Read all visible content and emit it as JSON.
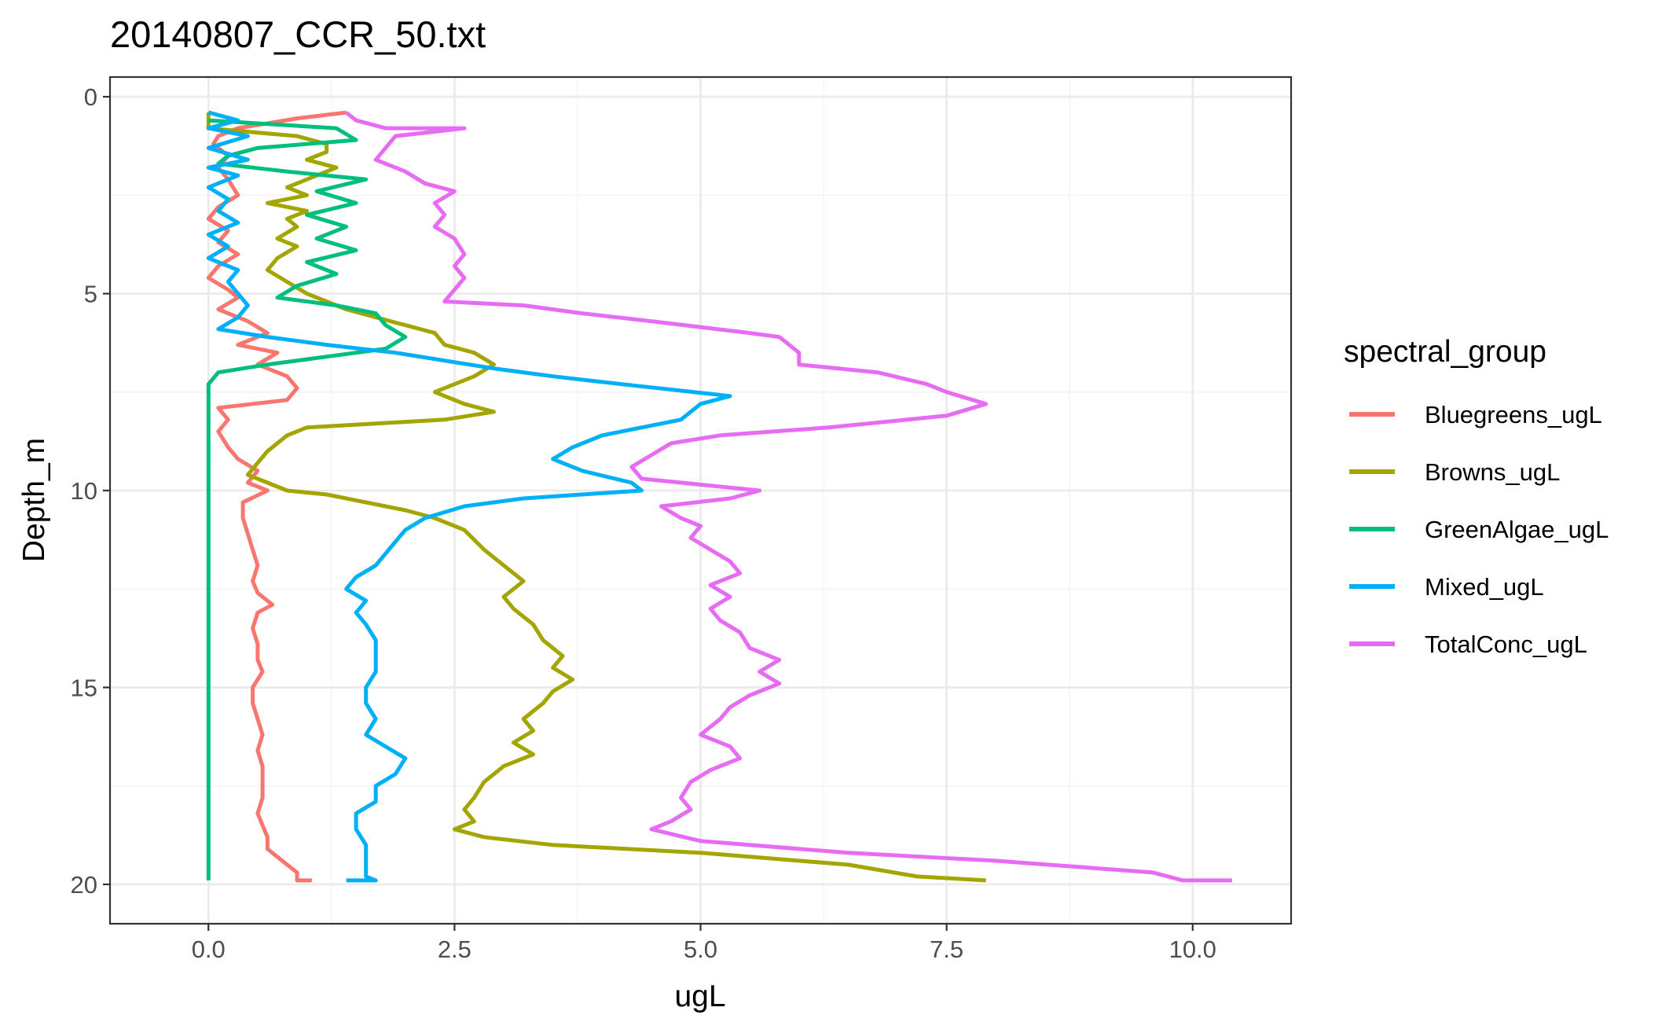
{
  "chart_data": {
    "type": "line",
    "title": "20140807_CCR_50.txt",
    "xlabel": "ugL",
    "ylabel": "Depth_m",
    "xlim": [
      -1.0,
      11.0
    ],
    "ylim": [
      21.0,
      -0.5
    ],
    "y_reversed": true,
    "xticks": [
      0,
      2.5,
      5,
      7.5,
      10
    ],
    "xtick_labels": [
      "0.0",
      "2.5",
      "5.0",
      "7.5",
      "10.0"
    ],
    "yticks": [
      0,
      5,
      10,
      15,
      20
    ],
    "ytick_labels": [
      "0",
      "5",
      "10",
      "15",
      "20"
    ],
    "grid": true,
    "legend_title": "spectral_group",
    "legend_position": "right",
    "series": [
      {
        "name": "Bluegreens_ugL",
        "color": "#F8766D",
        "points": [
          [
            1.4,
            0.4
          ],
          [
            0.9,
            0.55
          ],
          [
            0.3,
            0.8
          ],
          [
            0.1,
            1.0
          ],
          [
            0.05,
            1.2
          ],
          [
            0.2,
            1.5
          ],
          [
            0.1,
            1.8
          ],
          [
            0.2,
            2.1
          ],
          [
            0.3,
            2.5
          ],
          [
            0.1,
            2.8
          ],
          [
            0.0,
            3.1
          ],
          [
            0.2,
            3.4
          ],
          [
            0.1,
            3.7
          ],
          [
            0.3,
            4.0
          ],
          [
            0.1,
            4.3
          ],
          [
            0.0,
            4.6
          ],
          [
            0.2,
            4.9
          ],
          [
            0.3,
            5.1
          ],
          [
            0.1,
            5.4
          ],
          [
            0.4,
            5.7
          ],
          [
            0.6,
            6.0
          ],
          [
            0.3,
            6.3
          ],
          [
            0.7,
            6.5
          ],
          [
            0.5,
            6.8
          ],
          [
            0.8,
            7.1
          ],
          [
            0.9,
            7.4
          ],
          [
            0.8,
            7.7
          ],
          [
            0.1,
            7.9
          ],
          [
            0.2,
            8.2
          ],
          [
            0.1,
            8.5
          ],
          [
            0.2,
            8.9
          ],
          [
            0.3,
            9.2
          ],
          [
            0.5,
            9.5
          ],
          [
            0.4,
            9.8
          ],
          [
            0.6,
            10.0
          ],
          [
            0.35,
            10.3
          ],
          [
            0.35,
            10.7
          ],
          [
            0.4,
            11.1
          ],
          [
            0.45,
            11.5
          ],
          [
            0.5,
            11.9
          ],
          [
            0.45,
            12.3
          ],
          [
            0.5,
            12.6
          ],
          [
            0.65,
            12.9
          ],
          [
            0.5,
            13.1
          ],
          [
            0.45,
            13.5
          ],
          [
            0.5,
            13.9
          ],
          [
            0.5,
            14.3
          ],
          [
            0.55,
            14.6
          ],
          [
            0.45,
            15.0
          ],
          [
            0.45,
            15.4
          ],
          [
            0.5,
            15.8
          ],
          [
            0.55,
            16.2
          ],
          [
            0.5,
            16.6
          ],
          [
            0.55,
            17.0
          ],
          [
            0.55,
            17.4
          ],
          [
            0.55,
            17.8
          ],
          [
            0.5,
            18.2
          ],
          [
            0.55,
            18.5
          ],
          [
            0.6,
            18.8
          ],
          [
            0.6,
            19.1
          ],
          [
            0.75,
            19.4
          ],
          [
            0.9,
            19.7
          ],
          [
            0.9,
            19.9
          ],
          [
            1.05,
            19.9
          ]
        ]
      },
      {
        "name": "Browns_ugL",
        "color": "#A3A500",
        "points": [
          [
            0.0,
            0.4
          ],
          [
            0.0,
            0.8
          ],
          [
            0.9,
            1.0
          ],
          [
            1.2,
            1.2
          ],
          [
            1.2,
            1.4
          ],
          [
            1.0,
            1.6
          ],
          [
            1.3,
            1.8
          ],
          [
            1.1,
            2.0
          ],
          [
            0.8,
            2.3
          ],
          [
            1.0,
            2.5
          ],
          [
            0.6,
            2.7
          ],
          [
            1.0,
            2.9
          ],
          [
            0.8,
            3.1
          ],
          [
            0.9,
            3.3
          ],
          [
            0.7,
            3.6
          ],
          [
            0.9,
            3.8
          ],
          [
            0.7,
            4.1
          ],
          [
            0.6,
            4.4
          ],
          [
            0.8,
            4.7
          ],
          [
            1.0,
            5.0
          ],
          [
            1.2,
            5.2
          ],
          [
            1.4,
            5.4
          ],
          [
            1.7,
            5.6
          ],
          [
            2.0,
            5.8
          ],
          [
            2.3,
            6.0
          ],
          [
            2.4,
            6.3
          ],
          [
            2.7,
            6.5
          ],
          [
            2.9,
            6.8
          ],
          [
            2.7,
            7.1
          ],
          [
            2.3,
            7.5
          ],
          [
            2.6,
            7.8
          ],
          [
            2.9,
            8.0
          ],
          [
            2.4,
            8.2
          ],
          [
            1.0,
            8.4
          ],
          [
            0.8,
            8.6
          ],
          [
            0.6,
            9.0
          ],
          [
            0.5,
            9.3
          ],
          [
            0.4,
            9.6
          ],
          [
            0.6,
            9.8
          ],
          [
            0.8,
            10.0
          ],
          [
            1.2,
            10.1
          ],
          [
            1.6,
            10.3
          ],
          [
            2.0,
            10.5
          ],
          [
            2.3,
            10.7
          ],
          [
            2.6,
            11.0
          ],
          [
            2.8,
            11.5
          ],
          [
            3.0,
            11.9
          ],
          [
            3.2,
            12.3
          ],
          [
            3.0,
            12.7
          ],
          [
            3.1,
            13.0
          ],
          [
            3.3,
            13.4
          ],
          [
            3.4,
            13.8
          ],
          [
            3.6,
            14.2
          ],
          [
            3.5,
            14.5
          ],
          [
            3.7,
            14.8
          ],
          [
            3.5,
            15.1
          ],
          [
            3.4,
            15.4
          ],
          [
            3.2,
            15.8
          ],
          [
            3.3,
            16.1
          ],
          [
            3.1,
            16.4
          ],
          [
            3.3,
            16.7
          ],
          [
            3.0,
            17.0
          ],
          [
            2.8,
            17.4
          ],
          [
            2.7,
            17.8
          ],
          [
            2.6,
            18.1
          ],
          [
            2.7,
            18.4
          ],
          [
            2.5,
            18.6
          ],
          [
            2.8,
            18.8
          ],
          [
            3.5,
            19.0
          ],
          [
            5.0,
            19.2
          ],
          [
            6.5,
            19.5
          ],
          [
            7.2,
            19.8
          ],
          [
            7.9,
            19.9
          ]
        ]
      },
      {
        "name": "GreenAlgae_ugL",
        "color": "#00BF7D",
        "points": [
          [
            0.0,
            0.6
          ],
          [
            1.3,
            0.8
          ],
          [
            1.5,
            1.1
          ],
          [
            0.5,
            1.3
          ],
          [
            0.2,
            1.5
          ],
          [
            0.1,
            1.7
          ],
          [
            0.8,
            1.9
          ],
          [
            1.6,
            2.1
          ],
          [
            1.1,
            2.4
          ],
          [
            1.5,
            2.7
          ],
          [
            1.0,
            3.0
          ],
          [
            1.4,
            3.3
          ],
          [
            1.1,
            3.6
          ],
          [
            1.5,
            3.9
          ],
          [
            1.0,
            4.2
          ],
          [
            1.3,
            4.5
          ],
          [
            0.9,
            4.8
          ],
          [
            0.7,
            5.1
          ],
          [
            1.3,
            5.3
          ],
          [
            1.7,
            5.5
          ],
          [
            1.8,
            5.8
          ],
          [
            2.0,
            6.1
          ],
          [
            1.8,
            6.4
          ],
          [
            1.2,
            6.6
          ],
          [
            0.6,
            6.8
          ],
          [
            0.1,
            7.0
          ],
          [
            0.0,
            7.3
          ],
          [
            0.0,
            9.0
          ],
          [
            0.0,
            12.0
          ],
          [
            0.0,
            15.0
          ],
          [
            0.0,
            18.0
          ],
          [
            0.0,
            19.9
          ]
        ]
      },
      {
        "name": "Mixed_ugL",
        "color": "#00B0F6",
        "points": [
          [
            0.0,
            0.4
          ],
          [
            0.3,
            0.6
          ],
          [
            0.0,
            0.8
          ],
          [
            0.4,
            1.0
          ],
          [
            0.0,
            1.3
          ],
          [
            0.4,
            1.6
          ],
          [
            0.0,
            1.8
          ],
          [
            0.3,
            2.0
          ],
          [
            0.0,
            2.3
          ],
          [
            0.2,
            2.6
          ],
          [
            0.1,
            2.9
          ],
          [
            0.3,
            3.2
          ],
          [
            0.0,
            3.5
          ],
          [
            0.2,
            3.8
          ],
          [
            0.0,
            4.1
          ],
          [
            0.3,
            4.4
          ],
          [
            0.2,
            4.7
          ],
          [
            0.3,
            5.0
          ],
          [
            0.4,
            5.3
          ],
          [
            0.3,
            5.6
          ],
          [
            0.1,
            5.9
          ],
          [
            0.6,
            6.1
          ],
          [
            1.2,
            6.3
          ],
          [
            1.9,
            6.5
          ],
          [
            2.4,
            6.7
          ],
          [
            2.9,
            6.9
          ],
          [
            3.5,
            7.1
          ],
          [
            4.2,
            7.3
          ],
          [
            5.3,
            7.6
          ],
          [
            5.0,
            7.8
          ],
          [
            4.8,
            8.2
          ],
          [
            4.0,
            8.6
          ],
          [
            3.7,
            8.9
          ],
          [
            3.5,
            9.2
          ],
          [
            3.8,
            9.5
          ],
          [
            4.3,
            9.8
          ],
          [
            4.4,
            10.0
          ],
          [
            3.2,
            10.2
          ],
          [
            2.6,
            10.4
          ],
          [
            2.2,
            10.7
          ],
          [
            2.0,
            11.0
          ],
          [
            1.9,
            11.3
          ],
          [
            1.8,
            11.6
          ],
          [
            1.7,
            11.9
          ],
          [
            1.5,
            12.2
          ],
          [
            1.4,
            12.5
          ],
          [
            1.6,
            12.8
          ],
          [
            1.5,
            13.1
          ],
          [
            1.6,
            13.4
          ],
          [
            1.7,
            13.8
          ],
          [
            1.7,
            14.2
          ],
          [
            1.7,
            14.6
          ],
          [
            1.6,
            15.0
          ],
          [
            1.6,
            15.4
          ],
          [
            1.7,
            15.8
          ],
          [
            1.6,
            16.2
          ],
          [
            1.8,
            16.5
          ],
          [
            2.0,
            16.8
          ],
          [
            1.9,
            17.2
          ],
          [
            1.7,
            17.5
          ],
          [
            1.7,
            17.9
          ],
          [
            1.5,
            18.2
          ],
          [
            1.5,
            18.6
          ],
          [
            1.6,
            19.0
          ],
          [
            1.6,
            19.4
          ],
          [
            1.6,
            19.8
          ],
          [
            1.7,
            19.9
          ],
          [
            1.4,
            19.9
          ]
        ]
      },
      {
        "name": "TotalConc_ugL",
        "color": "#E76BF3",
        "points": [
          [
            1.4,
            0.4
          ],
          [
            1.5,
            0.6
          ],
          [
            1.8,
            0.8
          ],
          [
            2.6,
            0.8
          ],
          [
            1.9,
            1.0
          ],
          [
            1.8,
            1.3
          ],
          [
            1.7,
            1.6
          ],
          [
            2.0,
            1.9
          ],
          [
            2.2,
            2.2
          ],
          [
            2.5,
            2.4
          ],
          [
            2.3,
            2.7
          ],
          [
            2.4,
            3.0
          ],
          [
            2.3,
            3.3
          ],
          [
            2.5,
            3.6
          ],
          [
            2.6,
            4.0
          ],
          [
            2.5,
            4.3
          ],
          [
            2.6,
            4.6
          ],
          [
            2.5,
            4.9
          ],
          [
            2.4,
            5.2
          ],
          [
            3.2,
            5.3
          ],
          [
            3.8,
            5.5
          ],
          [
            4.5,
            5.7
          ],
          [
            5.5,
            6.0
          ],
          [
            5.8,
            6.1
          ],
          [
            5.9,
            6.3
          ],
          [
            6.0,
            6.5
          ],
          [
            6.0,
            6.8
          ],
          [
            6.8,
            7.0
          ],
          [
            7.3,
            7.3
          ],
          [
            7.5,
            7.5
          ],
          [
            7.9,
            7.8
          ],
          [
            7.5,
            8.1
          ],
          [
            6.3,
            8.4
          ],
          [
            5.2,
            8.6
          ],
          [
            4.7,
            8.8
          ],
          [
            4.5,
            9.1
          ],
          [
            4.3,
            9.4
          ],
          [
            4.4,
            9.7
          ],
          [
            5.2,
            9.9
          ],
          [
            5.6,
            10.0
          ],
          [
            5.3,
            10.2
          ],
          [
            4.6,
            10.4
          ],
          [
            4.8,
            10.7
          ],
          [
            5.0,
            10.9
          ],
          [
            4.9,
            11.2
          ],
          [
            5.1,
            11.5
          ],
          [
            5.3,
            11.8
          ],
          [
            5.4,
            12.1
          ],
          [
            5.1,
            12.4
          ],
          [
            5.3,
            12.7
          ],
          [
            5.1,
            13.0
          ],
          [
            5.2,
            13.3
          ],
          [
            5.4,
            13.6
          ],
          [
            5.5,
            14.0
          ],
          [
            5.8,
            14.3
          ],
          [
            5.6,
            14.6
          ],
          [
            5.8,
            14.9
          ],
          [
            5.5,
            15.2
          ],
          [
            5.3,
            15.5
          ],
          [
            5.2,
            15.8
          ],
          [
            5.0,
            16.2
          ],
          [
            5.3,
            16.5
          ],
          [
            5.4,
            16.8
          ],
          [
            5.1,
            17.1
          ],
          [
            4.9,
            17.4
          ],
          [
            4.8,
            17.8
          ],
          [
            4.9,
            18.1
          ],
          [
            4.7,
            18.4
          ],
          [
            4.5,
            18.6
          ],
          [
            5.0,
            18.9
          ],
          [
            6.5,
            19.2
          ],
          [
            8.0,
            19.4
          ],
          [
            9.6,
            19.7
          ],
          [
            9.9,
            19.9
          ],
          [
            10.4,
            19.9
          ]
        ]
      }
    ]
  }
}
